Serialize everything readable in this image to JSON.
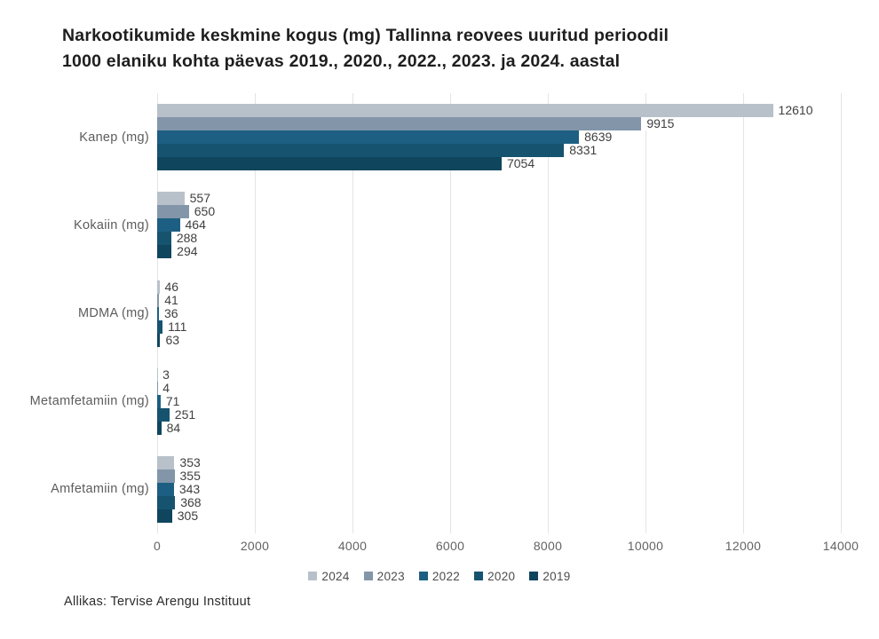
{
  "title": {
    "line1": "Narkootikumide keskmine kogus (mg) Tallinna reovees uuritud perioodil",
    "line2": "1000 elaniku kohta päevas 2019., 2020., 2022., 2023. ja 2024. aastal"
  },
  "footer": {
    "source": "Allikas: Tervise Arengu Instituut"
  },
  "chart_data": {
    "type": "bar",
    "orientation": "horizontal",
    "title": "Narkootikumide keskmine kogus (mg) Tallinna reovees uuritud perioodil 1000 elaniku kohta päevas 2019., 2020., 2022., 2023. ja 2024. aastal",
    "categories": [
      "Kanep (mg)",
      "Kokaiin (mg)",
      "MDMA (mg)",
      "Metamfetamiin (mg)",
      "Amfetamiin (mg)"
    ],
    "series": [
      {
        "name": "2024",
        "color": "#b8c1ca",
        "values": [
          12610,
          557,
          46,
          3,
          353
        ]
      },
      {
        "name": "2023",
        "color": "#8396a9",
        "values": [
          9915,
          650,
          41,
          4,
          355
        ]
      },
      {
        "name": "2022",
        "color": "#1d5f82",
        "values": [
          8639,
          464,
          36,
          71,
          343
        ]
      },
      {
        "name": "2020",
        "color": "#16536f",
        "values": [
          8331,
          288,
          111,
          251,
          368
        ]
      },
      {
        "name": "2019",
        "color": "#10455e",
        "values": [
          7054,
          294,
          63,
          84,
          305
        ]
      }
    ],
    "xlabel": "",
    "ylabel": "",
    "xlim": [
      0,
      14000
    ],
    "xticks": [
      0,
      2000,
      4000,
      6000,
      8000,
      10000,
      12000,
      14000
    ],
    "grid": "vertical",
    "legend_position": "bottom",
    "value_labels": true,
    "gridline_color": "#e4e4e4",
    "background_color": "#ffffff"
  }
}
